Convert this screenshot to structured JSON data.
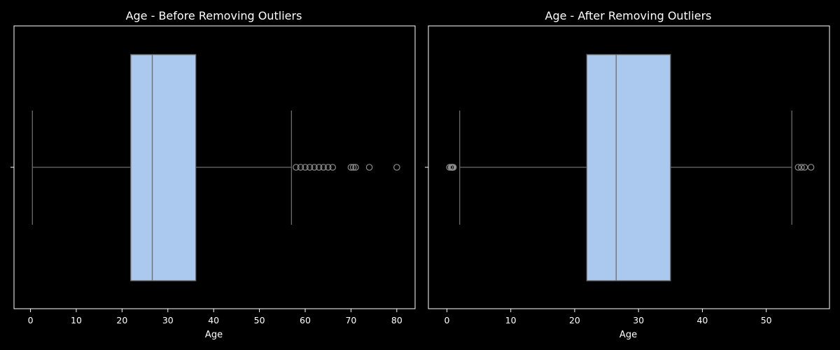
{
  "colors": {
    "background": "#000000",
    "box_fill": "#abc9ee",
    "line": "#6d6d6d",
    "axes": "#ffffff",
    "text": "#ffffff",
    "flier_edge": "#8c8c8c"
  },
  "chart_data": [
    {
      "type": "boxplot",
      "title": "Age - Before Removing Outliers",
      "xlabel": "Age",
      "xlim": [
        -3.6,
        84.0
      ],
      "xticks": [
        0,
        10,
        20,
        30,
        40,
        50,
        60,
        70,
        80
      ],
      "xtick_labels": [
        "0",
        "10",
        "20",
        "30",
        "40",
        "50",
        "60",
        "70",
        "80"
      ],
      "orientation": "horizontal",
      "grid": false,
      "box": {
        "whisker_low": 0.42,
        "q1": 21.9,
        "median": 26.6,
        "q3": 36.1,
        "whisker_high": 57.0
      },
      "fliers": [
        58,
        59,
        60,
        61,
        62,
        63,
        64,
        65,
        66,
        70,
        70.5,
        71,
        74,
        80
      ]
    },
    {
      "type": "boxplot",
      "title": "Age - After Removing Outliers",
      "xlabel": "Age",
      "xlim": [
        -2.9,
        59.9
      ],
      "xticks": [
        0,
        10,
        20,
        30,
        40,
        50
      ],
      "xtick_labels": [
        "0",
        "10",
        "20",
        "30",
        "40",
        "50"
      ],
      "orientation": "horizontal",
      "grid": false,
      "box": {
        "whisker_low": 2.0,
        "q1": 21.9,
        "median": 26.5,
        "q3": 35.0,
        "whisker_high": 54.0
      },
      "fliers": [
        0.42,
        0.67,
        0.75,
        0.83,
        0.92,
        1.0,
        55.0,
        55.5,
        56.0,
        57.0
      ]
    }
  ]
}
